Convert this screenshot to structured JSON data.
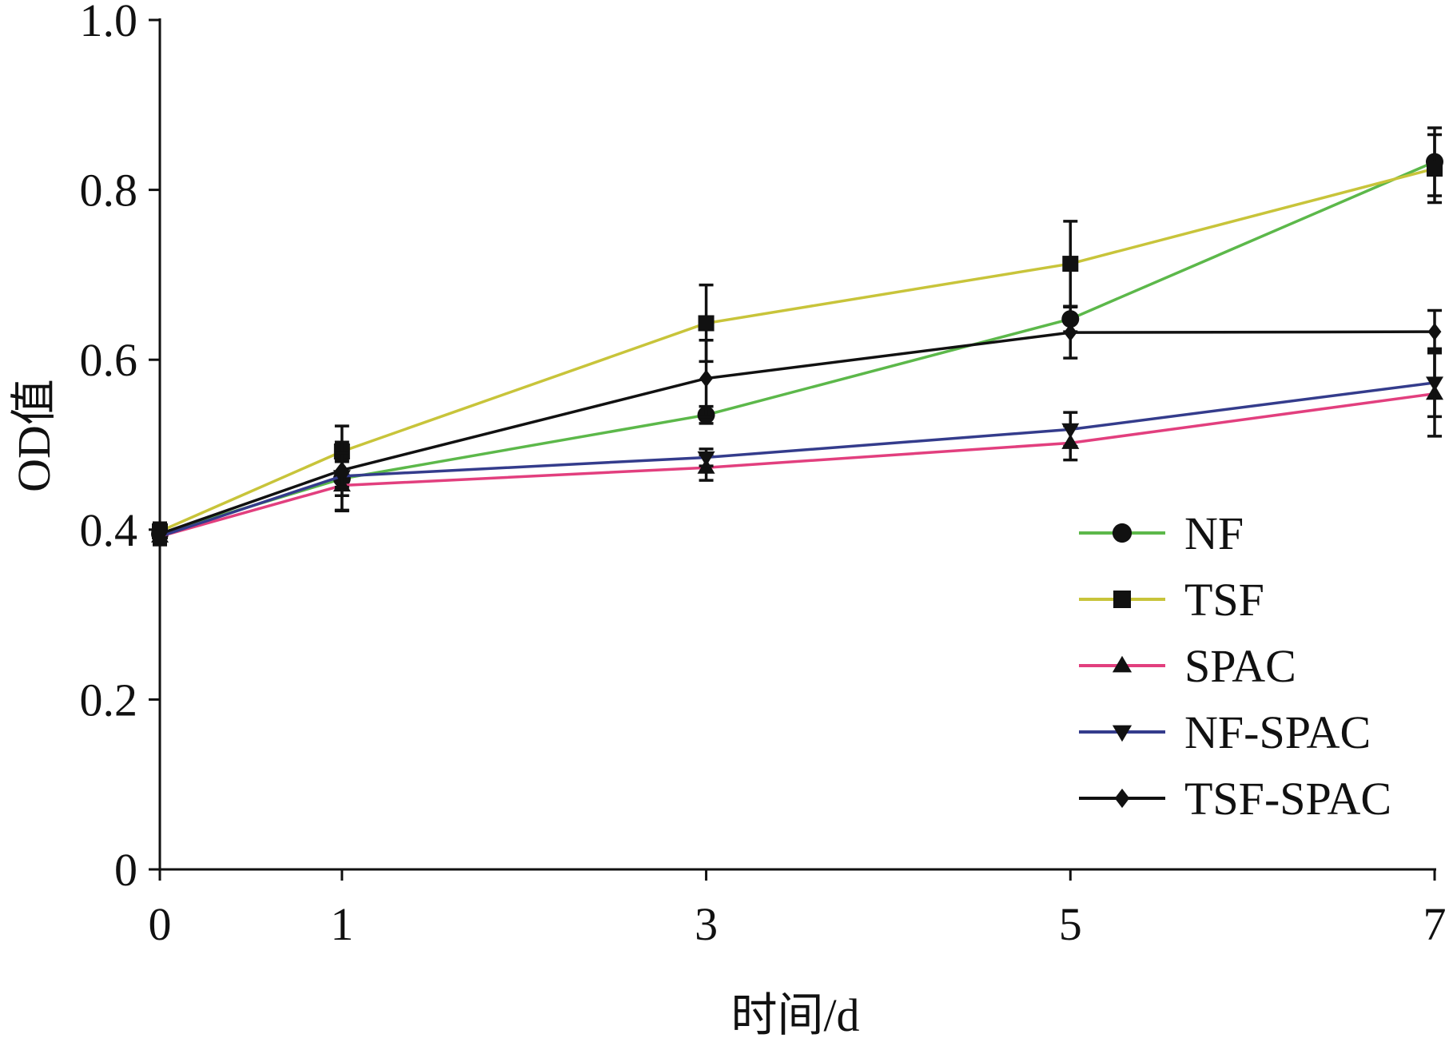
{
  "chart_data": {
    "type": "line",
    "x": [
      0,
      1,
      3,
      5,
      7
    ],
    "xticks": [
      "0",
      "1",
      "3",
      "5",
      "7"
    ],
    "yticks": [
      "0",
      "0.2",
      "0.4",
      "0.6",
      "0.8",
      "1.0"
    ],
    "xlim": [
      0,
      7
    ],
    "ylim": [
      0,
      1.0
    ],
    "xlabel": "时间/d",
    "ylabel": "OD值",
    "grid": false,
    "legend_position": "bottom-right",
    "series": [
      {
        "name": "NF",
        "color": "#5cb84a",
        "marker": "circle",
        "values": [
          0.395,
          0.46,
          0.535,
          0.648,
          0.833
        ],
        "error": [
          0.01,
          0.02,
          0.01,
          0.015,
          0.04
        ]
      },
      {
        "name": "TSF",
        "color": "#c8c43a",
        "marker": "square",
        "values": [
          0.398,
          0.492,
          0.643,
          0.713,
          0.825
        ],
        "error": [
          0.01,
          0.03,
          0.045,
          0.05,
          0.04
        ]
      },
      {
        "name": "SPAC",
        "color": "#e23f7e",
        "marker": "triangle-up",
        "values": [
          0.392,
          0.452,
          0.473,
          0.502,
          0.56
        ],
        "error": [
          0.01,
          0.03,
          0.015,
          0.02,
          0.05
        ]
      },
      {
        "name": "NF-SPAC",
        "color": "#343c8c",
        "marker": "triangle-down",
        "values": [
          0.392,
          0.463,
          0.485,
          0.518,
          0.573
        ],
        "error": [
          0.01,
          0.04,
          0.01,
          0.02,
          0.04
        ]
      },
      {
        "name": "TSF-SPAC",
        "color": "#111111",
        "marker": "diamond",
        "values": [
          0.395,
          0.47,
          0.578,
          0.632,
          0.633
        ],
        "error": [
          0.01,
          0.02,
          0.045,
          0.03,
          0.025
        ]
      }
    ]
  }
}
